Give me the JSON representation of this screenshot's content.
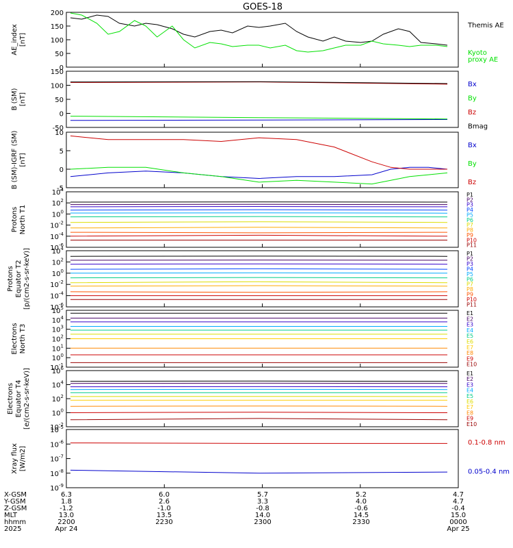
{
  "title": "GOES-18",
  "colors": {
    "axis": "#000000",
    "black": "#000000",
    "green": "#00e000",
    "blue": "#0000cc",
    "red": "#cc0000",
    "darkred": "#990000"
  },
  "time_axis": {
    "ticks_hhmm": [
      "2200",
      "2230",
      "2300",
      "2330",
      "0000"
    ],
    "rows": [
      {
        "label": "X-GSM",
        "values": [
          "6.3",
          "6.0",
          "5.7",
          "5.2",
          "4.7"
        ]
      },
      {
        "label": "Y-GSM",
        "values": [
          "1.8",
          "2.6",
          "3.3",
          "4.0",
          "4.7"
        ]
      },
      {
        "label": "Z-GSM",
        "values": [
          "-1.2",
          "-1.0",
          "-0.8",
          "-0.6",
          "-0.4"
        ]
      },
      {
        "label": "MLT",
        "values": [
          "13.0",
          "13.5",
          "14.0",
          "14.5",
          "15.0"
        ]
      },
      {
        "label": "hhmm",
        "values": [
          "2200",
          "2230",
          "2300",
          "2330",
          "0000"
        ]
      },
      {
        "label": "2025",
        "values": [
          "Apr 24",
          "",
          "",
          "",
          "Apr 25"
        ]
      }
    ]
  },
  "chart_data": [
    {
      "type": "line",
      "ylabel": "AE_index\n[nT]",
      "ylim": [
        0,
        200
      ],
      "yscale": "linear",
      "yticks": [
        "0",
        "50",
        "100",
        "150",
        "200"
      ],
      "x_range": [
        "2200",
        "0000"
      ],
      "series": [
        {
          "name": "Themis AE",
          "color": "black",
          "x": [
            0,
            0.03,
            0.07,
            0.1,
            0.13,
            0.17,
            0.2,
            0.23,
            0.27,
            0.3,
            0.33,
            0.37,
            0.4,
            0.43,
            0.47,
            0.5,
            0.53,
            0.57,
            0.6,
            0.63,
            0.67,
            0.7,
            0.73,
            0.77,
            0.8,
            0.83,
            0.87,
            0.9,
            0.93,
            0.97,
            1
          ],
          "values": [
            180,
            175,
            190,
            185,
            160,
            150,
            160,
            155,
            140,
            120,
            110,
            130,
            135,
            125,
            150,
            145,
            150,
            160,
            130,
            110,
            95,
            110,
            95,
            90,
            95,
            120,
            140,
            130,
            90,
            85,
            80
          ]
        },
        {
          "name": "Kyoto\nproxy AE",
          "color": "green",
          "x": [
            0,
            0.03,
            0.07,
            0.1,
            0.13,
            0.17,
            0.2,
            0.23,
            0.27,
            0.3,
            0.33,
            0.37,
            0.4,
            0.43,
            0.47,
            0.5,
            0.53,
            0.57,
            0.6,
            0.63,
            0.67,
            0.7,
            0.73,
            0.77,
            0.8,
            0.83,
            0.87,
            0.9,
            0.93,
            0.97,
            1
          ],
          "values": [
            200,
            190,
            160,
            120,
            130,
            170,
            150,
            110,
            150,
            100,
            70,
            90,
            85,
            75,
            80,
            80,
            70,
            80,
            60,
            55,
            60,
            70,
            80,
            80,
            95,
            85,
            80,
            75,
            80,
            80,
            75
          ]
        }
      ]
    },
    {
      "type": "line",
      "ylabel": "B (SM)\n[nT]",
      "ylim": [
        -50,
        150
      ],
      "yscale": "linear",
      "yticks": [
        "-50",
        "0",
        "50",
        "100",
        "150"
      ],
      "series": [
        {
          "name": "Bx",
          "color": "blue",
          "x": [
            0,
            0.5,
            1
          ],
          "values": [
            -25,
            -24,
            -22
          ]
        },
        {
          "name": "By",
          "color": "green",
          "x": [
            0,
            0.5,
            1
          ],
          "values": [
            -10,
            -15,
            -20
          ]
        },
        {
          "name": "Bz",
          "color": "red",
          "x": [
            0,
            0.5,
            1
          ],
          "values": [
            110,
            112,
            104
          ]
        },
        {
          "name": "Bmag",
          "color": "black",
          "x": [
            0,
            0.5,
            1
          ],
          "values": [
            112,
            113,
            106
          ]
        }
      ]
    },
    {
      "type": "line",
      "ylabel": "B (SM)-IGRF (SM)\n[nT]",
      "ylim": [
        -5,
        10
      ],
      "yscale": "linear",
      "yticks": [
        "-5",
        "0",
        "5",
        "10"
      ],
      "series": [
        {
          "name": "Bx",
          "color": "blue",
          "x": [
            0,
            0.1,
            0.2,
            0.3,
            0.4,
            0.5,
            0.6,
            0.7,
            0.8,
            0.85,
            0.9,
            0.95,
            1
          ],
          "values": [
            -2,
            -1,
            -0.5,
            -1,
            -2,
            -2.5,
            -2,
            -2,
            -1.5,
            0,
            0.5,
            0.5,
            0
          ]
        },
        {
          "name": "By",
          "color": "green",
          "x": [
            0,
            0.1,
            0.2,
            0.3,
            0.4,
            0.5,
            0.6,
            0.7,
            0.8,
            0.85,
            0.9,
            0.95,
            1
          ],
          "values": [
            0,
            0.5,
            0.5,
            -1,
            -2,
            -3.5,
            -3,
            -3.5,
            -4,
            -3,
            -2,
            -1.5,
            -1
          ]
        },
        {
          "name": "Bz",
          "color": "red",
          "x": [
            0,
            0.1,
            0.2,
            0.3,
            0.4,
            0.5,
            0.6,
            0.7,
            0.8,
            0.85,
            0.9,
            0.95,
            1
          ],
          "values": [
            9,
            8,
            8,
            8,
            7.5,
            8.5,
            8,
            6,
            2,
            0.5,
            0,
            0,
            0
          ]
        }
      ]
    },
    {
      "type": "line",
      "ylabel": "Protons\nNorth T1",
      "yscale": "log",
      "ylim_exp": [
        -6,
        4
      ],
      "yticks": [
        "10-6",
        "10-4",
        "10-2",
        "100",
        "102",
        "104"
      ],
      "series": [
        {
          "name": "P1",
          "color": "#000000",
          "values": [
            140,
            150,
            140
          ]
        },
        {
          "name": "P2",
          "color": "#440066",
          "values": [
            50,
            55,
            50
          ]
        },
        {
          "name": "P3",
          "color": "#3300cc",
          "values": [
            20,
            22,
            20
          ]
        },
        {
          "name": "P4",
          "color": "#0044ff",
          "values": [
            5,
            6,
            5
          ]
        },
        {
          "name": "P5",
          "color": "#00aaff",
          "values": [
            1.5,
            1.6,
            1.4
          ]
        },
        {
          "name": "P6",
          "color": "#00cc88",
          "values": [
            0.3,
            0.35,
            0.3
          ]
        },
        {
          "name": "P7",
          "color": "#dddd00",
          "values": [
            0.03,
            0.04,
            0.03
          ]
        },
        {
          "name": "P8",
          "color": "#ffaa00",
          "values": [
            0.003,
            0.004,
            0.003
          ]
        },
        {
          "name": "P9",
          "color": "#ff5500",
          "values": [
            0.0005,
            0.0004,
            0.0005
          ]
        },
        {
          "name": "P10",
          "color": "#cc0000",
          "values": [
            0.0001,
            0.00015,
            0.0001
          ]
        },
        {
          "name": "P11",
          "color": "#990000",
          "values": [
            2e-05,
            2e-05,
            2e-05
          ]
        }
      ]
    },
    {
      "type": "line",
      "ylabel": "Protons\nEquator T2\n[p/(cm2-s-sr-keV)]",
      "yscale": "log",
      "ylim_exp": [
        -6,
        4
      ],
      "yticks": [
        "10-6",
        "10-4",
        "10-2",
        "100",
        "102",
        "104"
      ],
      "series": [
        {
          "name": "P1",
          "color": "#000000",
          "values": [
            1000,
            1100,
            1000
          ]
        },
        {
          "name": "P2",
          "color": "#440066",
          "values": [
            200,
            220,
            200
          ]
        },
        {
          "name": "P3",
          "color": "#3300cc",
          "values": [
            40,
            45,
            40
          ]
        },
        {
          "name": "P4",
          "color": "#0044ff",
          "values": [
            5,
            6,
            5
          ]
        },
        {
          "name": "P5",
          "color": "#00aaff",
          "values": [
            1,
            1.2,
            1
          ]
        },
        {
          "name": "P6",
          "color": "#00cc88",
          "values": [
            0.15,
            0.17,
            0.15
          ]
        },
        {
          "name": "P7",
          "color": "#dddd00",
          "values": [
            0.02,
            0.03,
            0.02
          ]
        },
        {
          "name": "P8",
          "color": "#ffaa00",
          "values": [
            0.005,
            0.006,
            0.005
          ]
        },
        {
          "name": "P9",
          "color": "#ff5500",
          "values": [
            0.0005,
            0.0004,
            0.0005
          ]
        },
        {
          "name": "P10",
          "color": "#cc0000",
          "values": [
            0.0001,
            0.0001,
            0.0001
          ]
        },
        {
          "name": "P11",
          "color": "#990000",
          "values": [
            2e-05,
            2e-05,
            2e-05
          ]
        }
      ]
    },
    {
      "type": "line",
      "ylabel": "Electrons\nNorth T3",
      "yscale": "log",
      "ylim_exp": [
        -1,
        5
      ],
      "yticks": [
        "10-1",
        "100",
        "101",
        "102",
        "103",
        "104",
        "105"
      ],
      "series": [
        {
          "name": "E1",
          "color": "#000000",
          "values": [
            50000,
            50000,
            50000
          ]
        },
        {
          "name": "E2",
          "color": "#440066",
          "values": [
            15000,
            15000,
            15000
          ]
        },
        {
          "name": "E3",
          "color": "#3300cc",
          "values": [
            6000,
            6000,
            6000
          ]
        },
        {
          "name": "E4",
          "color": "#00aaff",
          "values": [
            2000,
            2000,
            2000
          ]
        },
        {
          "name": "E5",
          "color": "#00cc88",
          "values": [
            800,
            800,
            800
          ]
        },
        {
          "name": "E6",
          "color": "#dddd00",
          "values": [
            300,
            300,
            300
          ]
        },
        {
          "name": "E7",
          "color": "#ffcc00",
          "values": [
            100,
            100,
            100
          ]
        },
        {
          "name": "E8",
          "color": "#ff8800",
          "values": [
            10,
            10,
            10
          ]
        },
        {
          "name": "E9",
          "color": "#cc0000",
          "values": [
            2,
            2,
            2
          ]
        },
        {
          "name": "E10",
          "color": "#990000",
          "values": [
            0.3,
            0.3,
            0.3
          ]
        }
      ]
    },
    {
      "type": "line",
      "ylabel": "Electrons\nEquator T4\n[e/(cm2-s-sr-keV)]",
      "yscale": "log",
      "ylim_exp": [
        -2,
        6
      ],
      "yticks": [
        "10-2",
        "100",
        "102",
        "104",
        "106"
      ],
      "series": [
        {
          "name": "E1",
          "color": "#000000",
          "values": [
            30000,
            32000,
            30000
          ]
        },
        {
          "name": "E2",
          "color": "#440066",
          "values": [
            15000,
            16000,
            15000
          ]
        },
        {
          "name": "E3",
          "color": "#3300cc",
          "values": [
            5000,
            5200,
            5000
          ]
        },
        {
          "name": "E4",
          "color": "#00aaff",
          "values": [
            2000,
            2100,
            2000
          ]
        },
        {
          "name": "E5",
          "color": "#00cc88",
          "values": [
            700,
            720,
            700
          ]
        },
        {
          "name": "E6",
          "color": "#dddd00",
          "values": [
            200,
            210,
            200
          ]
        },
        {
          "name": "E7",
          "color": "#ffcc00",
          "values": [
            60,
            60,
            60
          ]
        },
        {
          "name": "E8",
          "color": "#ff8800",
          "values": [
            8,
            9,
            8
          ]
        },
        {
          "name": "E9",
          "color": "#cc0000",
          "values": [
            1,
            1.2,
            1
          ]
        },
        {
          "name": "E10",
          "color": "#990000",
          "values": [
            0.1,
            0.15,
            0.1
          ]
        }
      ]
    },
    {
      "type": "line",
      "ylabel": "Xray flux\n[W/m2]",
      "yscale": "log",
      "ylim_exp": [
        -9,
        -5
      ],
      "yticks": [
        "10-9",
        "10-8",
        "10-7",
        "10-6",
        "10-5"
      ],
      "series": [
        {
          "name": "0.1-0.8 nm",
          "color": "red",
          "values": [
            1.2e-06,
            1.1e-06,
            1.1e-06
          ]
        },
        {
          "name": "0.05-0.4 nm",
          "color": "blue",
          "values": [
            1.6e-08,
            1e-08,
            1.2e-08
          ]
        }
      ]
    }
  ]
}
